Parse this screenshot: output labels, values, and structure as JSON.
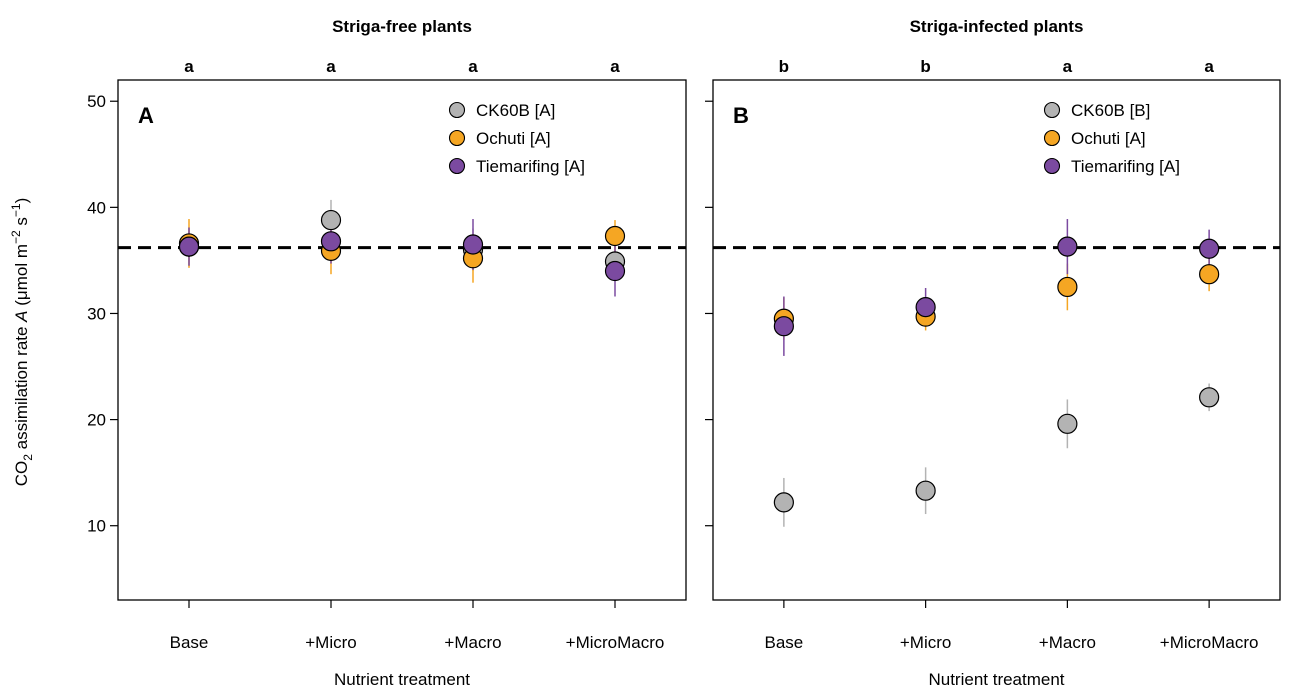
{
  "chart_data": [
    {
      "type": "scatter",
      "panel_letter": "A",
      "title": "Striga-free plants",
      "xlabel": "Nutrient treatment",
      "ylabel": "CO₂ assimilation rate A (μmol m⁻² s⁻¹)",
      "categories": [
        "Base",
        "+Micro",
        "+Macro",
        "+MicroMacro"
      ],
      "significance_letters": [
        "a",
        "a",
        "a",
        "a"
      ],
      "ylim": [
        3,
        52
      ],
      "yticks": [
        10,
        20,
        30,
        40,
        50
      ],
      "reference_line": 36.2,
      "legend_position": "top-right",
      "series": [
        {
          "name": "CK60B [A]",
          "color": "#b3b3b3",
          "values": [
            36.3,
            38.8,
            36.0,
            34.9
          ],
          "errors": [
            1.8,
            1.9,
            2.0,
            1.6
          ]
        },
        {
          "name": "Ochuti [A]",
          "color": "#f5a623",
          "values": [
            36.6,
            35.9,
            35.2,
            37.3
          ],
          "errors": [
            2.3,
            2.2,
            2.3,
            1.5
          ]
        },
        {
          "name": "Tiemarifing [A]",
          "color": "#7b4aa0",
          "values": [
            36.3,
            36.8,
            36.5,
            34.0
          ],
          "errors": [
            1.8,
            2.1,
            2.4,
            2.4
          ]
        }
      ]
    },
    {
      "type": "scatter",
      "panel_letter": "B",
      "title": "Striga-infected plants",
      "xlabel": "Nutrient treatment",
      "ylabel": "",
      "categories": [
        "Base",
        "+Micro",
        "+Macro",
        "+MicroMacro"
      ],
      "significance_letters": [
        "b",
        "b",
        "a",
        "a"
      ],
      "ylim": [
        3,
        52
      ],
      "yticks": [
        10,
        20,
        30,
        40,
        50
      ],
      "reference_line": 36.2,
      "legend_position": "top-right",
      "series": [
        {
          "name": "CK60B [B]",
          "color": "#b3b3b3",
          "values": [
            12.2,
            13.3,
            19.6,
            22.1
          ],
          "errors": [
            2.3,
            2.2,
            2.3,
            1.3
          ]
        },
        {
          "name": "Ochuti [A]",
          "color": "#f5a623",
          "values": [
            29.5,
            29.7,
            32.5,
            33.7
          ],
          "errors": [
            2.0,
            1.3,
            2.2,
            1.6
          ]
        },
        {
          "name": "Tiemarifing [A]",
          "color": "#7b4aa0",
          "values": [
            28.8,
            30.6,
            36.3,
            36.1
          ],
          "errors": [
            2.8,
            1.8,
            2.6,
            1.8
          ]
        }
      ]
    }
  ]
}
